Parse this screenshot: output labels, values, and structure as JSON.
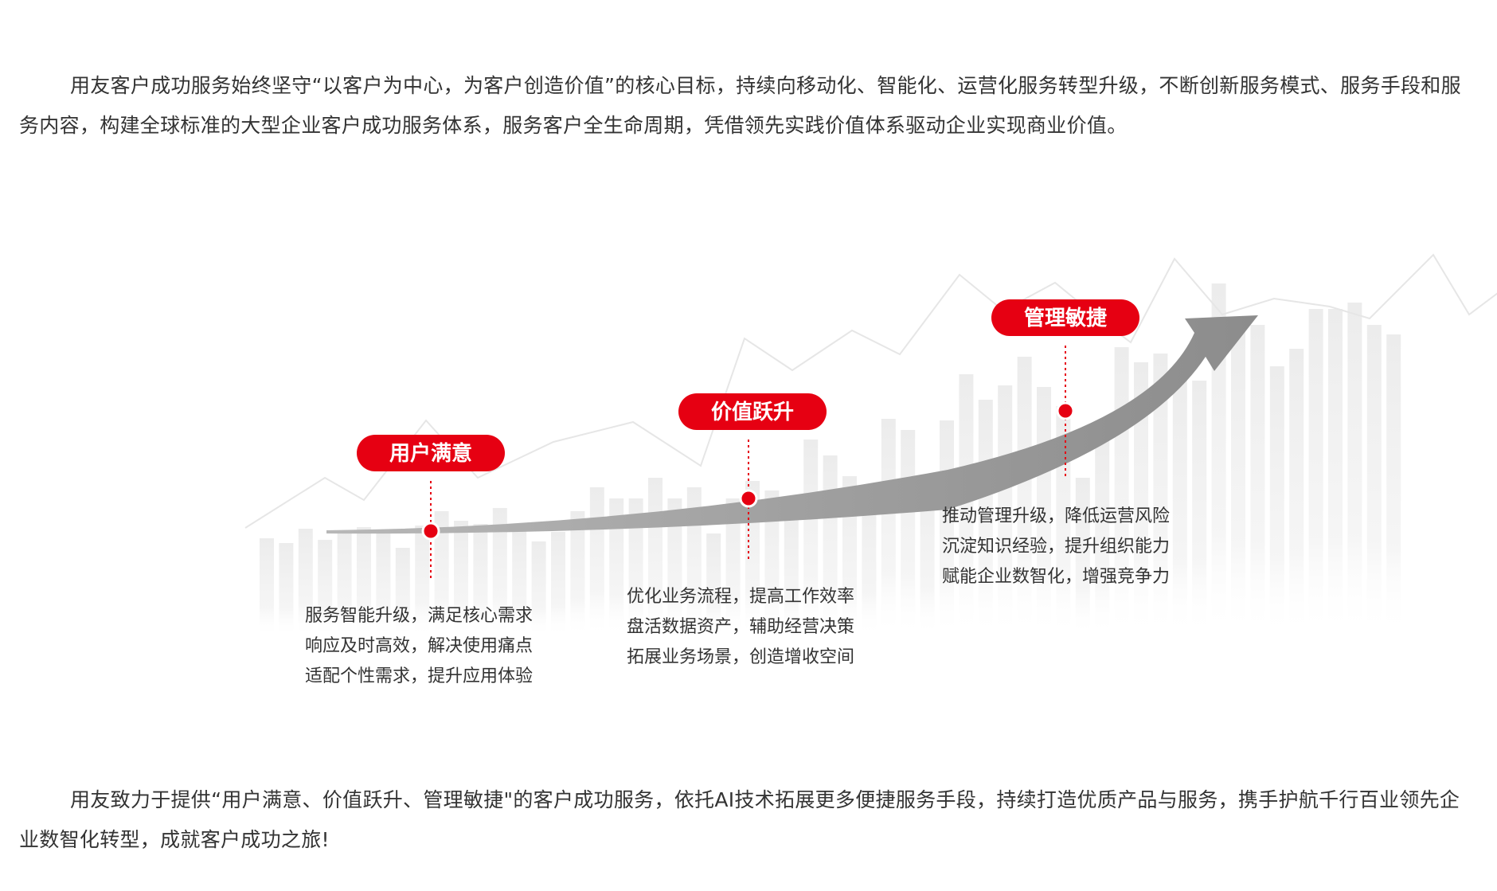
{
  "intro_paragraph": "用友客户成功服务始终坚守“以客户为中心，为客户创造价值”的核心目标，持续向移动化、智能化、运营化服务转型升级，不断创新服务模式、服务手段和服务内容，构建全球标准的大型企业客户成功服务体系，服务客户全生命周期，凭借领先实践价值体系驱动企业实现商业价值。",
  "closing_paragraph": "用友致力于提供“用户满意、价值跃升、管理敏捷\"的客户成功服务，依托AI技术拓展更多便捷服务手段，持续打造优质产品与服务，携手护航千行百业领先企业数智化转型，成就客户成功之旅!",
  "stages": [
    {
      "title": "用户满意",
      "lines": [
        "服务智能升级，满足核心需求",
        "响应及时高效，解决使用痛点",
        "适配个性需求，提升应用体验"
      ]
    },
    {
      "title": "价值跃升",
      "lines": [
        "优化业务流程，提高工作效率",
        "盘活数据资产，辅助经营决策",
        "拓展业务场景，创造增收空间"
      ]
    },
    {
      "title": "管理敏捷",
      "lines": [
        "推动管理升级，降低运营风险",
        "沉淀知识经验，提升组织能力",
        "赋能企业数智化，增强竞争力"
      ]
    }
  ],
  "colors": {
    "accent": "#e60012",
    "arrow": "#9a9a9a",
    "bars": "#f0f0f0",
    "text": "#333333"
  }
}
